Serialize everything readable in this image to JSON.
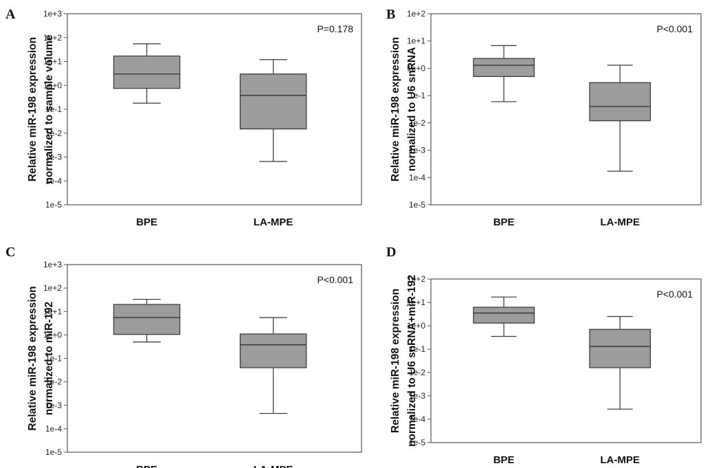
{
  "chart_data": [
    {
      "panel": "A",
      "type": "box",
      "ylabel_lines": [
        "Relative miR-198 expression",
        "normalized to sample volume"
      ],
      "yscale": "log",
      "yticks": [
        "1e-5",
        "1e-4",
        "1e-3",
        "1e-2",
        "1e-1",
        "1e+0",
        "1e+1",
        "1e+2",
        "1e+3"
      ],
      "ylim_exp": [
        -5,
        3
      ],
      "annotation": "P=0.178",
      "categories": [
        "BPE",
        "LA-MPE"
      ],
      "boxes": [
        {
          "category": "BPE",
          "min": 0.18,
          "q1": 0.75,
          "median": 3.0,
          "q3": 17,
          "max": 55
        },
        {
          "category": "LA-MPE",
          "min": 0.00065,
          "q1": 0.015,
          "median": 0.38,
          "q3": 3.0,
          "max": 12
        }
      ]
    },
    {
      "panel": "B",
      "type": "box",
      "ylabel_lines": [
        "Relative miR-198 expression",
        "normalized to U6 snRNA"
      ],
      "yscale": "log",
      "yticks": [
        "1e-5",
        "1e-4",
        "1e-3",
        "1e-2",
        "1e-1",
        "1e+0",
        "1e+1",
        "1e+2"
      ],
      "ylim_exp": [
        -5,
        2
      ],
      "annotation": "P<0.001",
      "categories": [
        "BPE",
        "LA-MPE"
      ],
      "boxes": [
        {
          "category": "BPE",
          "min": 0.06,
          "q1": 0.5,
          "median": 1.3,
          "q3": 2.3,
          "max": 6.8
        },
        {
          "category": "LA-MPE",
          "min": 0.00017,
          "q1": 0.012,
          "median": 0.04,
          "q3": 0.3,
          "max": 1.3
        }
      ]
    },
    {
      "panel": "C",
      "type": "box",
      "ylabel_lines": [
        "Relative miR-198 expression",
        "normalized to miR-192"
      ],
      "yscale": "log",
      "yticks": [
        "1e-5",
        "1e-4",
        "1e-3",
        "1e-2",
        "1e-1",
        "1e+0",
        "1e+1",
        "1e+2",
        "1e+3"
      ],
      "ylim_exp": [
        -5,
        3
      ],
      "annotation": "P<0.001",
      "categories": [
        "BPE",
        "LA-MPE"
      ],
      "boxes": [
        {
          "category": "BPE",
          "min": 0.5,
          "q1": 1.05,
          "median": 5.5,
          "q3": 20,
          "max": 33
        },
        {
          "category": "LA-MPE",
          "min": 0.00045,
          "q1": 0.04,
          "median": 0.38,
          "q3": 1.1,
          "max": 5.5
        }
      ]
    },
    {
      "panel": "D",
      "type": "box",
      "ylabel_lines": [
        "Relative miR-198 expression",
        "normalized to U6 snRNA+miR-192"
      ],
      "yscale": "log",
      "yticks": [
        "1e-5",
        "1e-4",
        "1e-3",
        "1e-2",
        "1e-1",
        "1e+0",
        "1e+1",
        "1e+2"
      ],
      "ylim_exp": [
        -5,
        2
      ],
      "annotation": "P<0.001",
      "categories": [
        "BPE",
        "LA-MPE"
      ],
      "boxes": [
        {
          "category": "BPE",
          "min": 0.35,
          "q1": 1.3,
          "median": 3.5,
          "q3": 6.2,
          "max": 17
        },
        {
          "category": "LA-MPE",
          "min": 0.00027,
          "q1": 0.016,
          "median": 0.13,
          "q3": 0.7,
          "max": 2.5
        }
      ]
    }
  ]
}
